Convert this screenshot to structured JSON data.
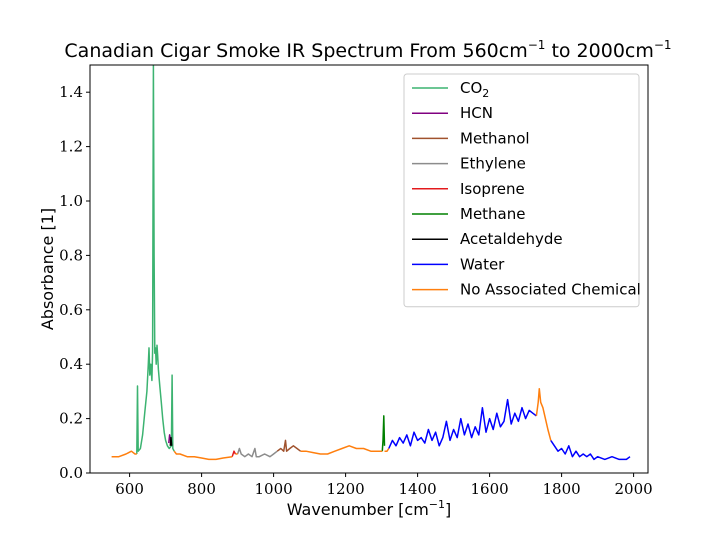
{
  "chart_data": {
    "type": "line",
    "title": "Canadian Cigar Smoke IR Spectrum From 560cm",
    "title_sup1": "−1",
    "title_mid": " to 2000cm",
    "title_sup2": "−1",
    "xlabel": "Wavenumber [cm",
    "xlabel_sup": "−1",
    "xlabel_end": "]",
    "ylabel": "Absorbance [1]",
    "xlim": [
      490,
      2040
    ],
    "ylim": [
      0.0,
      1.5
    ],
    "xticks": [
      600,
      800,
      1000,
      1200,
      1400,
      1600,
      1800,
      2000
    ],
    "xtick_labels": [
      "600",
      "800",
      "1000",
      "1200",
      "1400",
      "1600",
      "1800",
      "2000"
    ],
    "yticks": [
      0.0,
      0.2,
      0.4,
      0.6,
      0.8,
      1.0,
      1.2,
      1.4
    ],
    "ytick_labels": [
      "0.0",
      "0.2",
      "0.4",
      "0.6",
      "0.8",
      "1.0",
      "1.2",
      "1.4"
    ],
    "legend_position": "top-right",
    "grid": false,
    "series": [
      {
        "name": "CO2",
        "label_base": "CO",
        "label_sub": "2",
        "color": "#3cb371",
        "segments": [
          [
            [
              620,
              0.07
            ],
            [
              622,
              0.32
            ],
            [
              624,
              0.08
            ],
            [
              630,
              0.09
            ],
            [
              636,
              0.14
            ],
            [
              642,
              0.22
            ],
            [
              648,
              0.3
            ],
            [
              652,
              0.4
            ],
            [
              654,
              0.46
            ],
            [
              656,
              0.36
            ],
            [
              659,
              0.4
            ],
            [
              662,
              0.34
            ],
            [
              664,
              0.45
            ],
            [
              666,
              1.5
            ],
            [
              668,
              0.8
            ],
            [
              670,
              0.44
            ],
            [
              672,
              0.46
            ],
            [
              674,
              0.4
            ],
            [
              676,
              0.47
            ],
            [
              678,
              0.43
            ],
            [
              680,
              0.38
            ],
            [
              684,
              0.32
            ],
            [
              688,
              0.26
            ],
            [
              692,
              0.2
            ],
            [
              696,
              0.15
            ],
            [
              700,
              0.12
            ],
            [
              705,
              0.1
            ],
            [
              710,
              0.09
            ],
            [
              716,
              0.1
            ],
            [
              718,
              0.36
            ],
            [
              720,
              0.09
            ],
            [
              724,
              0.08
            ]
          ]
        ]
      },
      {
        "name": "HCN",
        "label_base": "HCN",
        "label_sub": "",
        "color": "#800080",
        "segments": [
          [
            [
              709,
              0.11
            ],
            [
              711,
              0.14
            ],
            [
              713,
              0.12
            ]
          ]
        ]
      },
      {
        "name": "Methanol",
        "label_base": "Methanol",
        "label_sub": "",
        "color": "#a0522d",
        "segments": [
          [
            [
              1010,
              0.08
            ],
            [
              1020,
              0.09
            ],
            [
              1028,
              0.08
            ],
            [
              1033,
              0.12
            ],
            [
              1036,
              0.08
            ],
            [
              1045,
              0.09
            ],
            [
              1055,
              0.1
            ],
            [
              1065,
              0.09
            ],
            [
              1075,
              0.08
            ]
          ]
        ]
      },
      {
        "name": "Ethylene",
        "label_base": "Ethylene",
        "label_sub": "",
        "color": "#8c8c8c",
        "segments": [
          [
            [
              900,
              0.07
            ],
            [
              905,
              0.09
            ],
            [
              910,
              0.07
            ],
            [
              920,
              0.06
            ],
            [
              930,
              0.07
            ],
            [
              940,
              0.06
            ],
            [
              948,
              0.09
            ],
            [
              952,
              0.06
            ],
            [
              960,
              0.06
            ],
            [
              975,
              0.07
            ],
            [
              990,
              0.06
            ],
            [
              1000,
              0.07
            ],
            [
              1010,
              0.08
            ]
          ]
        ]
      },
      {
        "name": "Isoprene",
        "label_base": "Isoprene",
        "label_sub": "",
        "color": "#e31a1c",
        "segments": [
          [
            [
              885,
              0.06
            ],
            [
              890,
              0.08
            ],
            [
              894,
              0.07
            ]
          ]
        ]
      },
      {
        "name": "Methane",
        "label_base": "Methane",
        "label_sub": "",
        "color": "#008000",
        "segments": [
          [
            [
              1302,
              0.08
            ],
            [
              1304,
              0.12
            ],
            [
              1306,
              0.21
            ],
            [
              1308,
              0.1
            ]
          ]
        ]
      },
      {
        "name": "Acetaldehyde",
        "label_base": "Acetaldehyde",
        "label_sub": "",
        "color": "#000000",
        "segments": [
          [
            [
              713,
              0.1
            ],
            [
              715,
              0.13
            ],
            [
              717,
              0.1
            ]
          ]
        ]
      },
      {
        "name": "Water",
        "label_base": "Water",
        "label_sub": "",
        "color": "#0000ff",
        "segments": [
          [
            [
              1320,
              0.09
            ],
            [
              1330,
              0.12
            ],
            [
              1340,
              0.1
            ],
            [
              1350,
              0.13
            ],
            [
              1360,
              0.11
            ],
            [
              1370,
              0.14
            ],
            [
              1380,
              0.1
            ],
            [
              1390,
              0.15
            ],
            [
              1400,
              0.12
            ],
            [
              1410,
              0.13
            ],
            [
              1420,
              0.11
            ],
            [
              1430,
              0.16
            ],
            [
              1440,
              0.12
            ],
            [
              1450,
              0.15
            ],
            [
              1460,
              0.1
            ],
            [
              1470,
              0.13
            ],
            [
              1480,
              0.19
            ],
            [
              1490,
              0.12
            ],
            [
              1500,
              0.16
            ],
            [
              1510,
              0.13
            ],
            [
              1520,
              0.2
            ],
            [
              1530,
              0.14
            ],
            [
              1540,
              0.18
            ],
            [
              1550,
              0.13
            ],
            [
              1560,
              0.17
            ],
            [
              1570,
              0.14
            ],
            [
              1580,
              0.24
            ],
            [
              1590,
              0.15
            ],
            [
              1600,
              0.2
            ],
            [
              1610,
              0.16
            ],
            [
              1620,
              0.22
            ],
            [
              1630,
              0.17
            ],
            [
              1640,
              0.19
            ],
            [
              1650,
              0.27
            ],
            [
              1660,
              0.18
            ],
            [
              1670,
              0.22
            ],
            [
              1680,
              0.19
            ],
            [
              1690,
              0.24
            ],
            [
              1700,
              0.2
            ],
            [
              1710,
              0.23
            ],
            [
              1720,
              0.22
            ],
            [
              1730,
              0.21
            ]
          ],
          [
            [
              1770,
              0.12
            ],
            [
              1780,
              0.1
            ],
            [
              1790,
              0.08
            ],
            [
              1800,
              0.09
            ],
            [
              1810,
              0.07
            ],
            [
              1820,
              0.1
            ],
            [
              1830,
              0.06
            ],
            [
              1840,
              0.08
            ],
            [
              1850,
              0.06
            ],
            [
              1860,
              0.07
            ],
            [
              1870,
              0.06
            ],
            [
              1880,
              0.07
            ],
            [
              1890,
              0.05
            ],
            [
              1900,
              0.06
            ],
            [
              1920,
              0.05
            ],
            [
              1940,
              0.06
            ],
            [
              1960,
              0.05
            ],
            [
              1980,
              0.05
            ],
            [
              1990,
              0.06
            ]
          ]
        ]
      },
      {
        "name": "No Associated Chemical",
        "label_base": "No Associated Chemical",
        "label_sub": "",
        "color": "#ff7f0e",
        "segments": [
          [
            [
              550,
              0.06
            ],
            [
              570,
              0.06
            ],
            [
              590,
              0.07
            ],
            [
              605,
              0.08
            ],
            [
              615,
              0.07
            ],
            [
              620,
              0.07
            ]
          ],
          [
            [
              724,
              0.08
            ],
            [
              730,
              0.07
            ],
            [
              740,
              0.07
            ],
            [
              760,
              0.06
            ],
            [
              780,
              0.06
            ],
            [
              800,
              0.055
            ],
            [
              820,
              0.05
            ],
            [
              840,
              0.05
            ],
            [
              860,
              0.055
            ],
            [
              885,
              0.06
            ]
          ],
          [
            [
              894,
              0.07
            ],
            [
              900,
              0.07
            ]
          ],
          [
            [
              1075,
              0.08
            ],
            [
              1090,
              0.08
            ],
            [
              1110,
              0.075
            ],
            [
              1130,
              0.07
            ],
            [
              1150,
              0.07
            ],
            [
              1170,
              0.08
            ],
            [
              1190,
              0.09
            ],
            [
              1210,
              0.1
            ],
            [
              1230,
              0.09
            ],
            [
              1250,
              0.09
            ],
            [
              1270,
              0.08
            ],
            [
              1290,
              0.08
            ],
            [
              1302,
              0.08
            ]
          ],
          [
            [
              1308,
              0.08
            ],
            [
              1315,
              0.08
            ],
            [
              1320,
              0.09
            ]
          ],
          [
            [
              1730,
              0.21
            ],
            [
              1735,
              0.26
            ],
            [
              1738,
              0.31
            ],
            [
              1742,
              0.26
            ],
            [
              1748,
              0.24
            ],
            [
              1755,
              0.2
            ],
            [
              1762,
              0.16
            ],
            [
              1770,
              0.12
            ]
          ]
        ]
      }
    ]
  }
}
